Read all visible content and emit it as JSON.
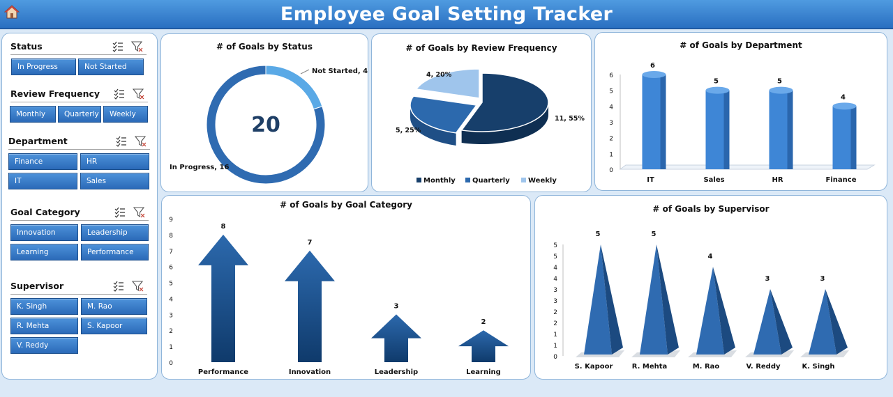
{
  "header": {
    "title": "Employee Goal Setting Tracker"
  },
  "slicers": [
    {
      "title": "Status",
      "items": [
        "In Progress",
        "Not Started"
      ]
    },
    {
      "title": "Review Frequency",
      "items": [
        "Monthly",
        "Quarterly",
        "Weekly"
      ]
    },
    {
      "title": "Department",
      "items": [
        "Finance",
        "HR",
        "IT",
        "Sales"
      ]
    },
    {
      "title": "Goal Category",
      "items": [
        "Innovation",
        "Leadership",
        "Learning",
        "Performance"
      ]
    },
    {
      "title": "Supervisor",
      "items": [
        "K. Singh",
        "M. Rao",
        "R. Mehta",
        "S. Kapoor",
        "V. Reddy"
      ]
    }
  ],
  "chart_data": [
    {
      "type": "pie",
      "title": "# of  Goals by Status",
      "categories": [
        "In Progress",
        "Not Started"
      ],
      "values": [
        16,
        4
      ],
      "total": 20,
      "labels": [
        "In Progress, 16",
        "Not Started, 4"
      ],
      "colors": [
        "#2f6bb1",
        "#5aa9e6"
      ]
    },
    {
      "type": "pie",
      "title": "# of  Goals by Review Frequency",
      "categories": [
        "Monthly",
        "Quarterly",
        "Weekly"
      ],
      "values": [
        11,
        5,
        4
      ],
      "labels": [
        "11, 55%",
        "5, 25%",
        "4, 20%"
      ],
      "colors": [
        "#173f6b",
        "#2c69ad",
        "#9fc5ec"
      ],
      "legend": "bottom"
    },
    {
      "type": "bar",
      "title": "# of  Goals by Department",
      "categories": [
        "IT",
        "Sales",
        "HR",
        "Finance"
      ],
      "values": [
        6,
        5,
        5,
        4
      ],
      "ylim": [
        0,
        6
      ],
      "yticks": [
        "0",
        "1",
        "2",
        "3",
        "4",
        "5",
        "6"
      ]
    },
    {
      "type": "bar",
      "title": "# of  Goals by Goal Category",
      "categories": [
        "Performance",
        "Innovation",
        "Leadership",
        "Learning"
      ],
      "values": [
        8,
        7,
        3,
        2
      ],
      "ylim": [
        0,
        9
      ],
      "yticks": [
        "0",
        "1",
        "2",
        "3",
        "4",
        "5",
        "6",
        "7",
        "8",
        "9"
      ]
    },
    {
      "type": "bar",
      "title": "# of  Goals by Supervisor",
      "categories": [
        "S. Kapoor",
        "R. Mehta",
        "M. Rao",
        "V. Reddy",
        "K. Singh"
      ],
      "values": [
        5,
        5,
        4,
        3,
        3
      ],
      "ylim": [
        0,
        5
      ],
      "yticks": [
        "0",
        "1",
        "1",
        "2",
        "2",
        "3",
        "3",
        "4",
        "4",
        "5",
        "5"
      ]
    }
  ]
}
